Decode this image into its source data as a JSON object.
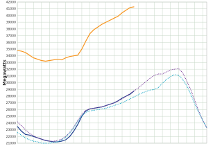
{
  "chart_data": {
    "type": "line",
    "y_label": "Megawatts",
    "categories": [
      null,
      null,
      null,
      null,
      null,
      null,
      null,
      null,
      null,
      null,
      null,
      null,
      null,
      null,
      null,
      null,
      null,
      null,
      null,
      null,
      null,
      null,
      null,
      null,
      null,
      null,
      null,
      null,
      null,
      null,
      null,
      null,
      null,
      null,
      null,
      null,
      null,
      null,
      null,
      null,
      null,
      null,
      null,
      null,
      null,
      null,
      null,
      null
    ],
    "ylim": [
      21000,
      42000
    ],
    "yticks": [
      21000,
      22000,
      23000,
      24000,
      25000,
      26000,
      27000,
      28000,
      29000,
      30000,
      31000,
      32000,
      33000,
      34000,
      35000,
      36000,
      37000,
      38000,
      39000,
      40000,
      41000,
      42000
    ],
    "grid": true,
    "series": [
      {
        "color": "#f7941d",
        "dash": "solid",
        "values": [
          34800,
          34700,
          34500,
          34100,
          33700,
          33500,
          33300,
          33200,
          33300,
          33400,
          33500,
          33400,
          33700,
          33900,
          34000,
          34100,
          35000,
          36200,
          37300,
          37900,
          38300,
          38700,
          39000,
          39300,
          39600,
          39900,
          40400,
          40800,
          41200,
          41300,
          null,
          null,
          null,
          null,
          null,
          null,
          null,
          null,
          null,
          null,
          null,
          null,
          null,
          null,
          null,
          null,
          null,
          null
        ]
      },
      {
        "color": "#1f3f8f",
        "dash": "solid",
        "values": [
          23500,
          22800,
          22300,
          22200,
          22000,
          21800,
          21600,
          21400,
          21300,
          21200,
          21200,
          21300,
          21500,
          22000,
          22800,
          23800,
          25000,
          25800,
          26100,
          26200,
          26300,
          26400,
          26600,
          26800,
          27000,
          27300,
          27700,
          28000,
          28300,
          28800,
          null,
          null,
          null,
          null,
          null,
          null,
          null,
          null,
          null,
          null,
          null,
          null,
          null,
          null,
          null,
          null,
          null,
          null
        ]
      },
      {
        "color": "#7a3f9a",
        "dash": "dotted",
        "values": [
          24200,
          23600,
          23000,
          22500,
          22100,
          21800,
          21600,
          21400,
          21300,
          21300,
          21400,
          21600,
          22000,
          22600,
          23400,
          24400,
          25300,
          25900,
          26100,
          26200,
          26300,
          26400,
          26600,
          26800,
          27000,
          27300,
          27600,
          28000,
          28400,
          28800,
          29200,
          29700,
          30200,
          30700,
          31100,
          31300,
          31300,
          31600,
          31900,
          32000,
          32100,
          31500,
          30300,
          29000,
          27400,
          25800,
          24400,
          23300
        ]
      },
      {
        "color": "#1aa7c4",
        "dash": "dotted",
        "values": [
          22600,
          22200,
          21800,
          21500,
          21300,
          21200,
          21000,
          21000,
          21000,
          21100,
          21200,
          21500,
          21900,
          22500,
          23300,
          24200,
          25100,
          25600,
          25800,
          25900,
          26000,
          26100,
          26200,
          26400,
          26600,
          26800,
          27000,
          27300,
          27600,
          27900,
          28200,
          28500,
          28700,
          28900,
          29000,
          29300,
          29900,
          30500,
          30900,
          31200,
          31100,
          30500,
          29600,
          28300,
          26900,
          25600,
          24400,
          23300
        ]
      }
    ]
  }
}
